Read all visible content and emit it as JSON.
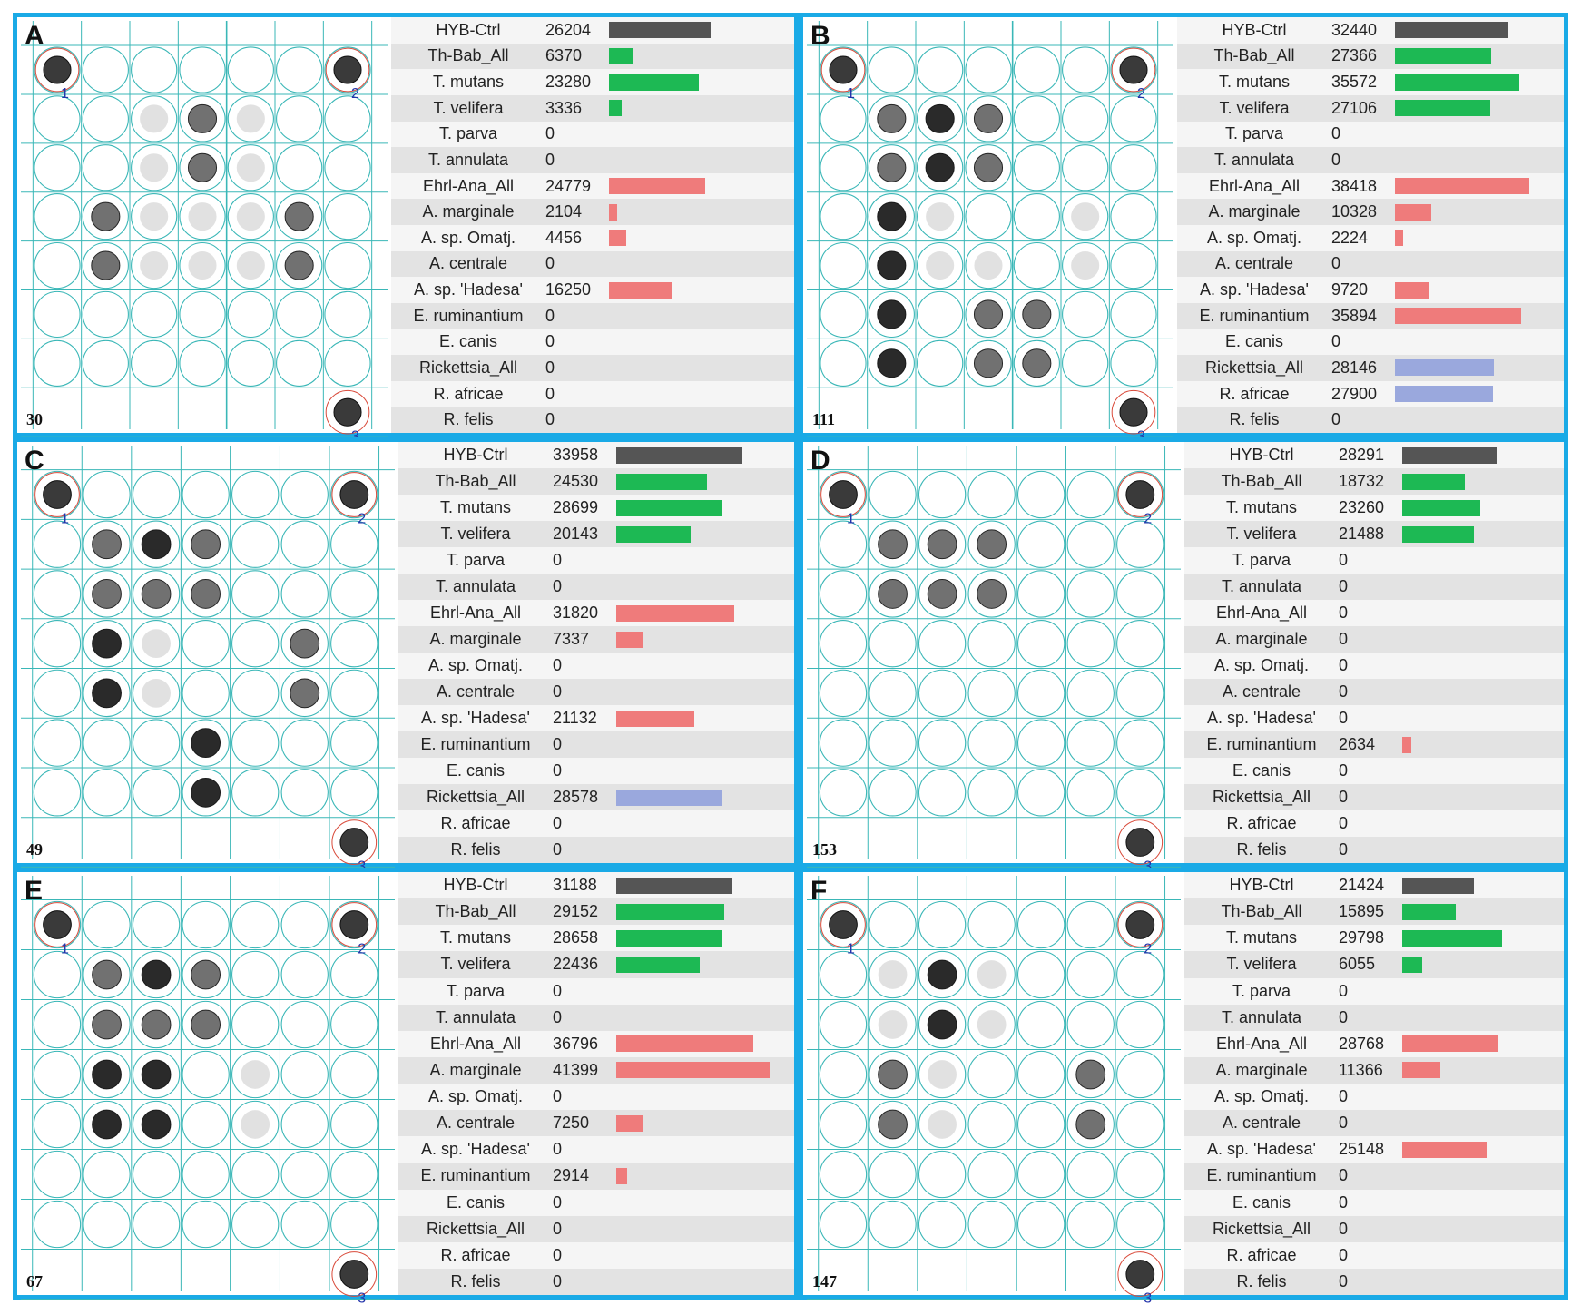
{
  "colors": {
    "border": "#1aaae6",
    "grid": "#3ab7b7",
    "ctrl": "#555555",
    "theileria": "#1db954",
    "anaplasma": "#ef7b7b",
    "rickettsia": "#9aa8dd",
    "marker_ring": "#d94a3a",
    "marker_label": "#2233aa"
  },
  "probe_names": [
    "HYB-Ctrl",
    "Th-Bab_All",
    "T. mutans",
    "T. velifera",
    "T. parva",
    "T. annulata",
    "Ehrl-Ana_All",
    "A. marginale",
    "A. sp. Omatj.",
    "A. centrale",
    "A. sp. 'Hadesa'",
    "E. ruminantium",
    "E. canis",
    "Rickettsia_All",
    "R. africae",
    "R. felis"
  ],
  "probe_groups": [
    "ctrl",
    "theileria",
    "theileria",
    "theileria",
    "theileria",
    "theileria",
    "anaplasma",
    "anaplasma",
    "anaplasma",
    "anaplasma",
    "anaplasma",
    "anaplasma",
    "anaplasma",
    "rickettsia",
    "rickettsia",
    "rickettsia"
  ],
  "marker_labels": [
    "1",
    "2",
    "3"
  ],
  "chart_data": [
    {
      "type": "bar",
      "panel": "A",
      "sample_id": "30",
      "categories": [
        "HYB-Ctrl",
        "Th-Bab_All",
        "T. mutans",
        "T. velifera",
        "T. parva",
        "T. annulata",
        "Ehrl-Ana_All",
        "A. marginale",
        "A. sp. Omatj.",
        "A. centrale",
        "A. sp. 'Hadesa'",
        "E. ruminantium",
        "E. canis",
        "Rickettsia_All",
        "R. africae",
        "R. felis"
      ],
      "values": [
        26204,
        6370,
        23280,
        3336,
        0,
        0,
        24779,
        2104,
        4456,
        0,
        16250,
        0,
        0,
        0,
        0,
        0
      ],
      "spots": [
        [
          1,
          2,
          "faint"
        ],
        [
          1,
          3,
          "medium"
        ],
        [
          1,
          4,
          "faint"
        ],
        [
          2,
          2,
          "faint"
        ],
        [
          2,
          3,
          "medium"
        ],
        [
          2,
          4,
          "faint"
        ],
        [
          3,
          1,
          "medium"
        ],
        [
          3,
          2,
          "faint"
        ],
        [
          3,
          3,
          "faint"
        ],
        [
          3,
          4,
          "faint"
        ],
        [
          3,
          5,
          "medium"
        ],
        [
          4,
          1,
          "medium"
        ],
        [
          4,
          2,
          "faint"
        ],
        [
          4,
          3,
          "faint"
        ],
        [
          4,
          4,
          "faint"
        ],
        [
          4,
          5,
          "medium"
        ]
      ]
    },
    {
      "type": "bar",
      "panel": "B",
      "sample_id": "111",
      "categories": [
        "HYB-Ctrl",
        "Th-Bab_All",
        "T. mutans",
        "T. velifera",
        "T. parva",
        "T. annulata",
        "Ehrl-Ana_All",
        "A. marginale",
        "A. sp. Omatj.",
        "A. centrale",
        "A. sp. 'Hadesa'",
        "E. ruminantium",
        "E. canis",
        "Rickettsia_All",
        "R. africae",
        "R. felis"
      ],
      "values": [
        32440,
        27366,
        35572,
        27106,
        0,
        0,
        38418,
        10328,
        2224,
        0,
        9720,
        35894,
        0,
        28146,
        27900,
        0
      ],
      "spots": [
        [
          1,
          1,
          "medium"
        ],
        [
          1,
          2,
          "strong"
        ],
        [
          1,
          3,
          "medium"
        ],
        [
          2,
          1,
          "medium"
        ],
        [
          2,
          2,
          "strong"
        ],
        [
          2,
          3,
          "medium"
        ],
        [
          3,
          1,
          "strong"
        ],
        [
          3,
          2,
          "faint"
        ],
        [
          3,
          5,
          "faint"
        ],
        [
          4,
          1,
          "strong"
        ],
        [
          4,
          2,
          "faint"
        ],
        [
          4,
          3,
          "faint"
        ],
        [
          4,
          5,
          "faint"
        ],
        [
          5,
          1,
          "strong"
        ],
        [
          5,
          3,
          "medium"
        ],
        [
          5,
          4,
          "medium"
        ],
        [
          6,
          1,
          "strong"
        ],
        [
          6,
          3,
          "medium"
        ],
        [
          6,
          4,
          "medium"
        ]
      ]
    },
    {
      "type": "bar",
      "panel": "C",
      "sample_id": "49",
      "categories": [
        "HYB-Ctrl",
        "Th-Bab_All",
        "T. mutans",
        "T. velifera",
        "T. parva",
        "T. annulata",
        "Ehrl-Ana_All",
        "A. marginale",
        "A. sp. Omatj.",
        "A. centrale",
        "A. sp. 'Hadesa'",
        "E. ruminantium",
        "E. canis",
        "Rickettsia_All",
        "R. africae",
        "R. felis"
      ],
      "values": [
        33958,
        24530,
        28699,
        20143,
        0,
        0,
        31820,
        7337,
        0,
        0,
        21132,
        0,
        0,
        28578,
        0,
        0
      ],
      "spots": [
        [
          1,
          1,
          "medium"
        ],
        [
          1,
          2,
          "strong"
        ],
        [
          1,
          3,
          "medium"
        ],
        [
          2,
          1,
          "medium"
        ],
        [
          2,
          2,
          "medium"
        ],
        [
          2,
          3,
          "medium"
        ],
        [
          3,
          1,
          "strong"
        ],
        [
          3,
          2,
          "faint"
        ],
        [
          3,
          5,
          "medium"
        ],
        [
          4,
          1,
          "strong"
        ],
        [
          4,
          2,
          "faint"
        ],
        [
          4,
          5,
          "medium"
        ],
        [
          5,
          3,
          "strong"
        ],
        [
          6,
          3,
          "strong"
        ]
      ]
    },
    {
      "type": "bar",
      "panel": "D",
      "sample_id": "153",
      "categories": [
        "HYB-Ctrl",
        "Th-Bab_All",
        "T. mutans",
        "T. velifera",
        "T. parva",
        "T. annulata",
        "Ehrl-Ana_All",
        "A. marginale",
        "A. sp. Omatj.",
        "A. centrale",
        "A. sp. 'Hadesa'",
        "E. ruminantium",
        "E. canis",
        "Rickettsia_All",
        "R. africae",
        "R. felis"
      ],
      "values": [
        28291,
        18732,
        23260,
        21488,
        0,
        0,
        0,
        0,
        0,
        0,
        0,
        2634,
        0,
        0,
        0,
        0
      ],
      "spots": [
        [
          1,
          1,
          "medium"
        ],
        [
          1,
          2,
          "medium"
        ],
        [
          1,
          3,
          "medium"
        ],
        [
          2,
          1,
          "medium"
        ],
        [
          2,
          2,
          "medium"
        ],
        [
          2,
          3,
          "medium"
        ]
      ]
    },
    {
      "type": "bar",
      "panel": "E",
      "sample_id": "67",
      "categories": [
        "HYB-Ctrl",
        "Th-Bab_All",
        "T. mutans",
        "T. velifera",
        "T. parva",
        "T. annulata",
        "Ehrl-Ana_All",
        "A. marginale",
        "A. sp. Omatj.",
        "A. centrale",
        "A. sp. 'Hadesa'",
        "E. ruminantium",
        "E. canis",
        "Rickettsia_All",
        "R. africae",
        "R. felis"
      ],
      "values": [
        31188,
        29152,
        28658,
        22436,
        0,
        0,
        36796,
        41399,
        0,
        7250,
        0,
        2914,
        0,
        0,
        0,
        0
      ],
      "spots": [
        [
          1,
          1,
          "medium"
        ],
        [
          1,
          2,
          "strong"
        ],
        [
          1,
          3,
          "medium"
        ],
        [
          2,
          1,
          "medium"
        ],
        [
          2,
          2,
          "medium"
        ],
        [
          2,
          3,
          "medium"
        ],
        [
          3,
          1,
          "strong"
        ],
        [
          3,
          2,
          "strong"
        ],
        [
          3,
          4,
          "faint"
        ],
        [
          4,
          1,
          "strong"
        ],
        [
          4,
          2,
          "strong"
        ],
        [
          4,
          4,
          "faint"
        ]
      ]
    },
    {
      "type": "bar",
      "panel": "F",
      "sample_id": "147",
      "categories": [
        "HYB-Ctrl",
        "Th-Bab_All",
        "T. mutans",
        "T. velifera",
        "T. parva",
        "T. annulata",
        "Ehrl-Ana_All",
        "A. marginale",
        "A. sp. Omatj.",
        "A. centrale",
        "A. sp. 'Hadesa'",
        "E. ruminantium",
        "E. canis",
        "Rickettsia_All",
        "R. africae",
        "R. felis"
      ],
      "values": [
        21424,
        15895,
        29798,
        6055,
        0,
        0,
        28768,
        11366,
        0,
        0,
        25148,
        0,
        0,
        0,
        0,
        0
      ],
      "spots": [
        [
          1,
          1,
          "faint"
        ],
        [
          1,
          2,
          "strong"
        ],
        [
          1,
          3,
          "faint"
        ],
        [
          2,
          1,
          "faint"
        ],
        [
          2,
          2,
          "strong"
        ],
        [
          2,
          3,
          "faint"
        ],
        [
          3,
          1,
          "medium"
        ],
        [
          3,
          2,
          "faint"
        ],
        [
          3,
          5,
          "medium"
        ],
        [
          4,
          1,
          "medium"
        ],
        [
          4,
          2,
          "faint"
        ],
        [
          4,
          5,
          "medium"
        ]
      ]
    }
  ]
}
